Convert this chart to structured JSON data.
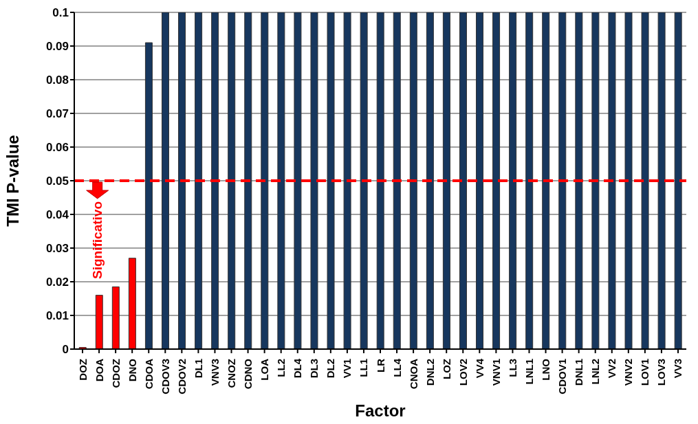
{
  "chart_data": {
    "type": "bar",
    "xlabel": "Factor",
    "ylabel": "TMI P-value",
    "categories": [
      "DOZ",
      "DOA",
      "CDOZ",
      "DNO",
      "CDOA",
      "CDOV3",
      "CDOV2",
      "DL1",
      "VNV3",
      "CNOZ",
      "CDNO",
      "LOA",
      "LL2",
      "DL4",
      "DL3",
      "DL2",
      "VV1",
      "LL1",
      "LR",
      "LL4",
      "CNOA",
      "DNL2",
      "LOZ",
      "LOV2",
      "VV4",
      "VNV1",
      "LL3",
      "LNL1",
      "LNO",
      "CDOV1",
      "DNL1",
      "LNL2",
      "VV2",
      "VNV2",
      "LOV1",
      "LOV3",
      "VV3"
    ],
    "values": [
      0.0005,
      0.016,
      0.0185,
      0.027,
      0.091,
      0.1,
      0.1,
      0.1,
      0.1,
      0.1,
      0.1,
      0.1,
      0.1,
      0.1,
      0.1,
      0.1,
      0.1,
      0.1,
      0.1,
      0.1,
      0.1,
      0.1,
      0.1,
      0.1,
      0.1,
      0.1,
      0.1,
      0.1,
      0.1,
      0.1,
      0.1,
      0.1,
      0.1,
      0.1,
      0.1,
      0.1,
      0.1
    ],
    "colors": [
      "#ff0000",
      "#ff0000",
      "#ff0000",
      "#ff0000",
      "#17375e",
      "#17375e",
      "#17375e",
      "#17375e",
      "#17375e",
      "#17375e",
      "#17375e",
      "#17375e",
      "#17375e",
      "#17375e",
      "#17375e",
      "#17375e",
      "#17375e",
      "#17375e",
      "#17375e",
      "#17375e",
      "#17375e",
      "#17375e",
      "#17375e",
      "#17375e",
      "#17375e",
      "#17375e",
      "#17375e",
      "#17375e",
      "#17375e",
      "#17375e",
      "#17375e",
      "#17375e",
      "#17375e",
      "#17375e",
      "#17375e",
      "#17375e",
      "#17375e"
    ],
    "ylim": [
      0,
      0.1
    ],
    "yticks": [
      0,
      0.01,
      0.02,
      0.03,
      0.04,
      0.05,
      0.06,
      0.07,
      0.08,
      0.09,
      0.1
    ],
    "grid": "y",
    "legend": false,
    "ref_lines": [
      {
        "axis": "y",
        "value": 0.05,
        "color": "#ff0000",
        "line_style": "dashed"
      }
    ],
    "annotations": [
      "Significativo"
    ]
  }
}
